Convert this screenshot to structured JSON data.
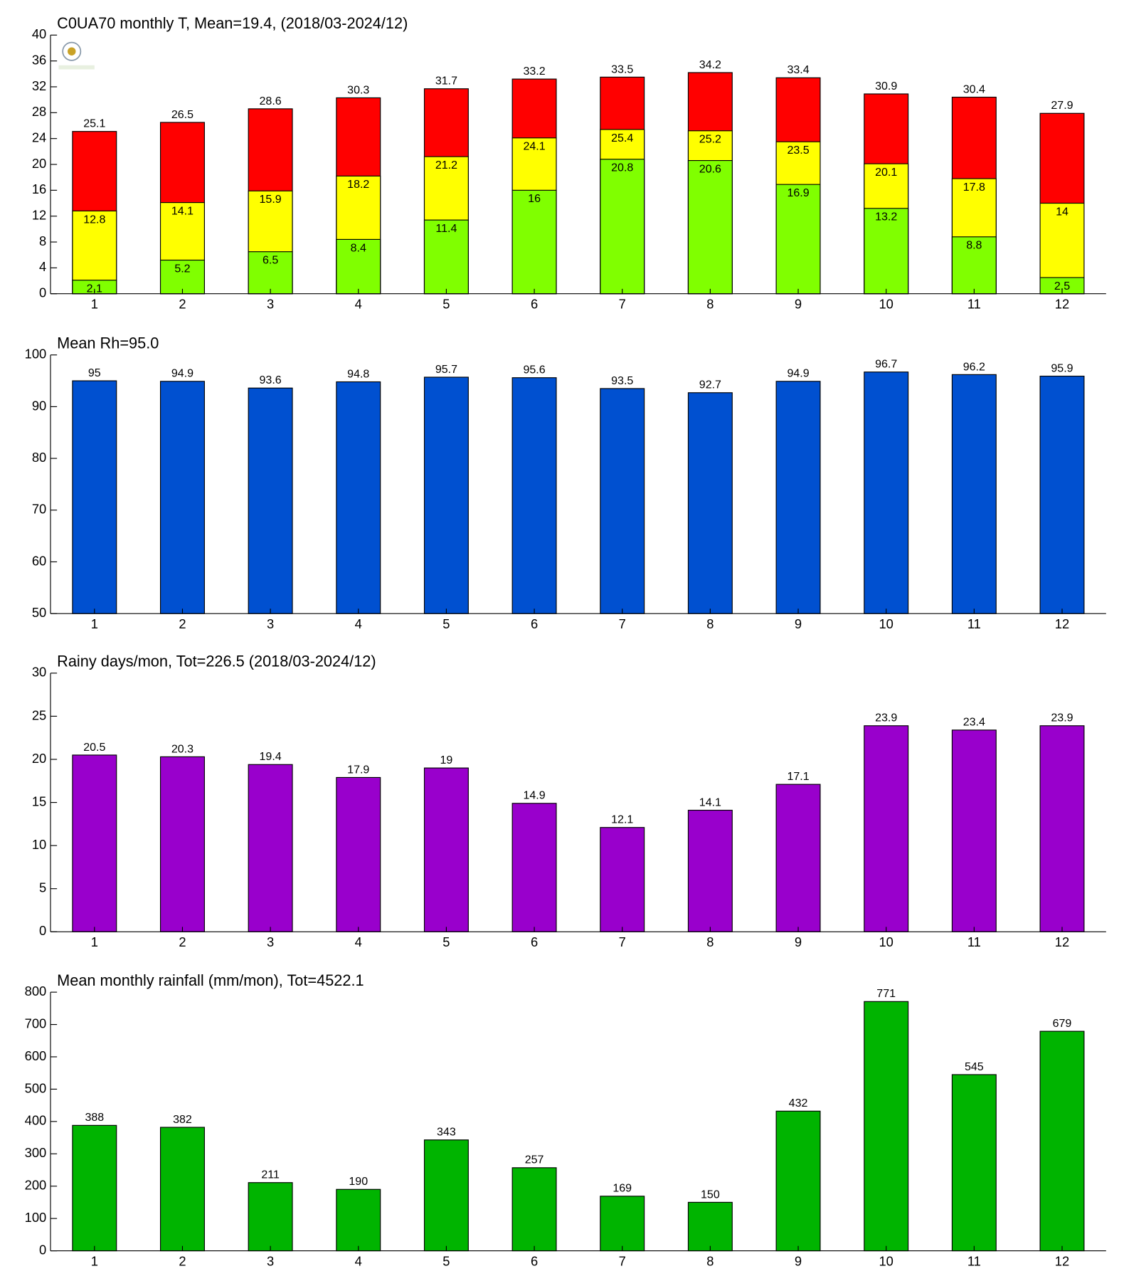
{
  "chart_data": [
    {
      "type": "bar",
      "title": "C0UA70 monthly T, Mean=19.4, (2018/03-2024/12)",
      "categories": [
        "1",
        "2",
        "3",
        "4",
        "5",
        "6",
        "7",
        "8",
        "9",
        "10",
        "11",
        "12"
      ],
      "series": [
        {
          "color": "#ff0000",
          "values": [
            25.1,
            26.5,
            28.6,
            30.3,
            31.7,
            33.2,
            33.5,
            34.2,
            33.4,
            30.9,
            30.4,
            27.9
          ]
        },
        {
          "color": "#ffff00",
          "values": [
            12.8,
            14.1,
            15.9,
            18.2,
            21.2,
            24.1,
            25.4,
            25.2,
            23.5,
            20.1,
            17.8,
            14
          ]
        },
        {
          "color": "#80ff00",
          "values": [
            2.1,
            5.2,
            6.5,
            8.4,
            11.4,
            16,
            20.8,
            20.6,
            16.9,
            13.2,
            8.8,
            2.5
          ]
        }
      ],
      "ylim": [
        0,
        40
      ],
      "yticks": [
        0,
        4,
        8,
        12,
        16,
        20,
        24,
        28,
        32,
        36,
        40
      ],
      "grid": false
    },
    {
      "type": "bar",
      "title": "Mean Rh=95.0",
      "categories": [
        "1",
        "2",
        "3",
        "4",
        "5",
        "6",
        "7",
        "8",
        "9",
        "10",
        "11",
        "12"
      ],
      "series": [
        {
          "color": "#0050d0",
          "values": [
            95,
            94.9,
            93.6,
            94.8,
            95.7,
            95.6,
            93.5,
            92.7,
            94.9,
            96.7,
            96.2,
            95.9
          ]
        }
      ],
      "ylim": [
        50,
        100
      ],
      "yticks": [
        50,
        60,
        70,
        80,
        90,
        100
      ],
      "grid": false
    },
    {
      "type": "bar",
      "title": "Rainy days/mon, Tot=226.5 (2018/03-2024/12)",
      "categories": [
        "1",
        "2",
        "3",
        "4",
        "5",
        "6",
        "7",
        "8",
        "9",
        "10",
        "11",
        "12"
      ],
      "series": [
        {
          "color": "#9900cc",
          "values": [
            20.5,
            20.3,
            19.4,
            17.9,
            19,
            14.9,
            12.1,
            14.1,
            17.1,
            23.9,
            23.4,
            23.9
          ]
        }
      ],
      "ylim": [
        0,
        30
      ],
      "yticks": [
        0,
        5,
        10,
        15,
        20,
        25,
        30
      ],
      "grid": false
    },
    {
      "type": "bar",
      "title": "Mean monthly rainfall (mm/mon), Tot=4522.1",
      "categories": [
        "1",
        "2",
        "3",
        "4",
        "5",
        "6",
        "7",
        "8",
        "9",
        "10",
        "11",
        "12"
      ],
      "series": [
        {
          "color": "#00b400",
          "values": [
            388,
            382,
            211,
            190,
            343,
            257,
            169,
            150,
            432,
            771,
            545,
            679
          ]
        }
      ],
      "ylim": [
        0,
        800
      ],
      "yticks": [
        0,
        100,
        200,
        300,
        400,
        500,
        600,
        700,
        800
      ],
      "grid": false
    }
  ]
}
